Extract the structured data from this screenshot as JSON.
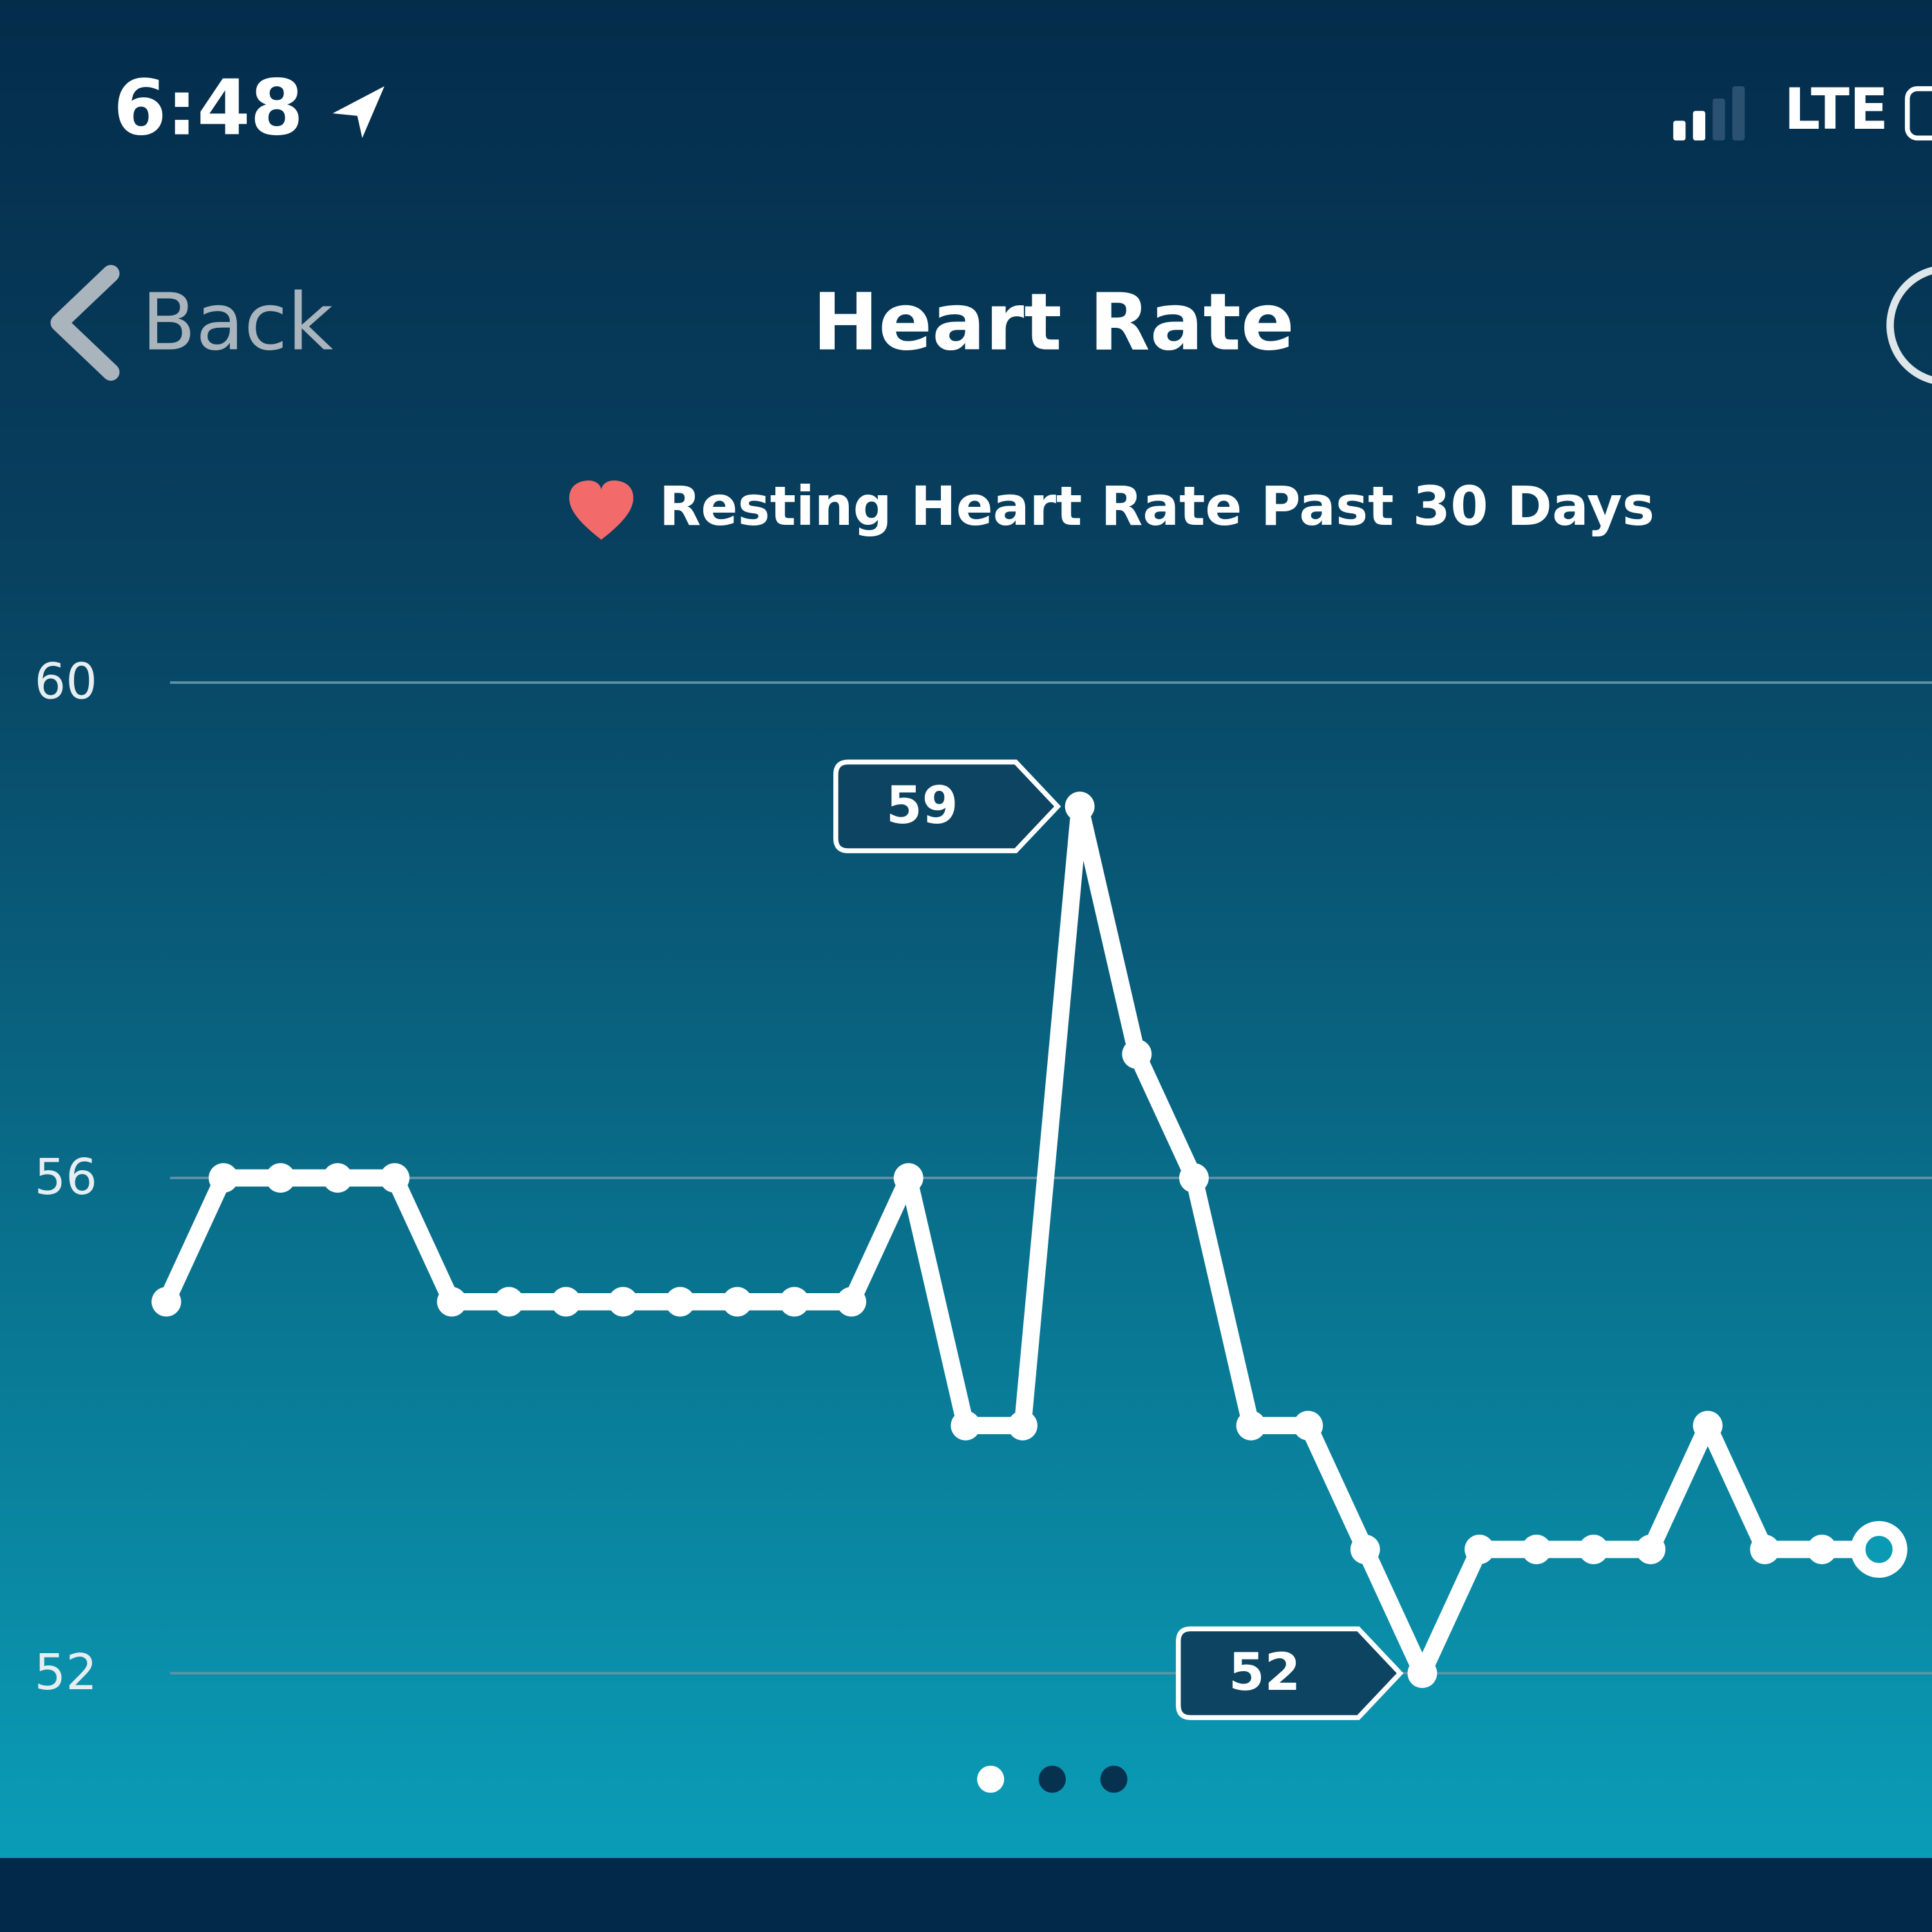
{
  "status_bar": {
    "time": "6:48",
    "network": "LTE"
  },
  "nav": {
    "back": "Back",
    "title": "Heart Rate"
  },
  "chart_data": {
    "type": "line",
    "title": "Resting Heart Rate Past 30 Days",
    "values": [
      55,
      56,
      56,
      56,
      56,
      55,
      55,
      55,
      55,
      55,
      55,
      55,
      55,
      56,
      54,
      54,
      59,
      57,
      56,
      54,
      54,
      53,
      52,
      53,
      53,
      53,
      53,
      54,
      53,
      53,
      53
    ],
    "color": "#ffffff",
    "ylim": [
      52,
      60
    ],
    "yticks": [
      52,
      56,
      60
    ],
    "grid": true
  }
}
